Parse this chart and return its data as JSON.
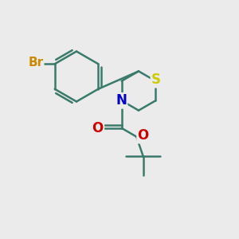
{
  "bg_color": "#ebebeb",
  "bond_color": "#3a7a6a",
  "bond_width": 1.8,
  "atom_colors": {
    "Br": "#cc8800",
    "S": "#cccc00",
    "N": "#0000cc",
    "O": "#cc0000",
    "C": "#3a7a6a"
  },
  "font_size_atom": 11,
  "font_size_br": 11,
  "fig_size": [
    3.0,
    3.0
  ],
  "dpi": 100
}
